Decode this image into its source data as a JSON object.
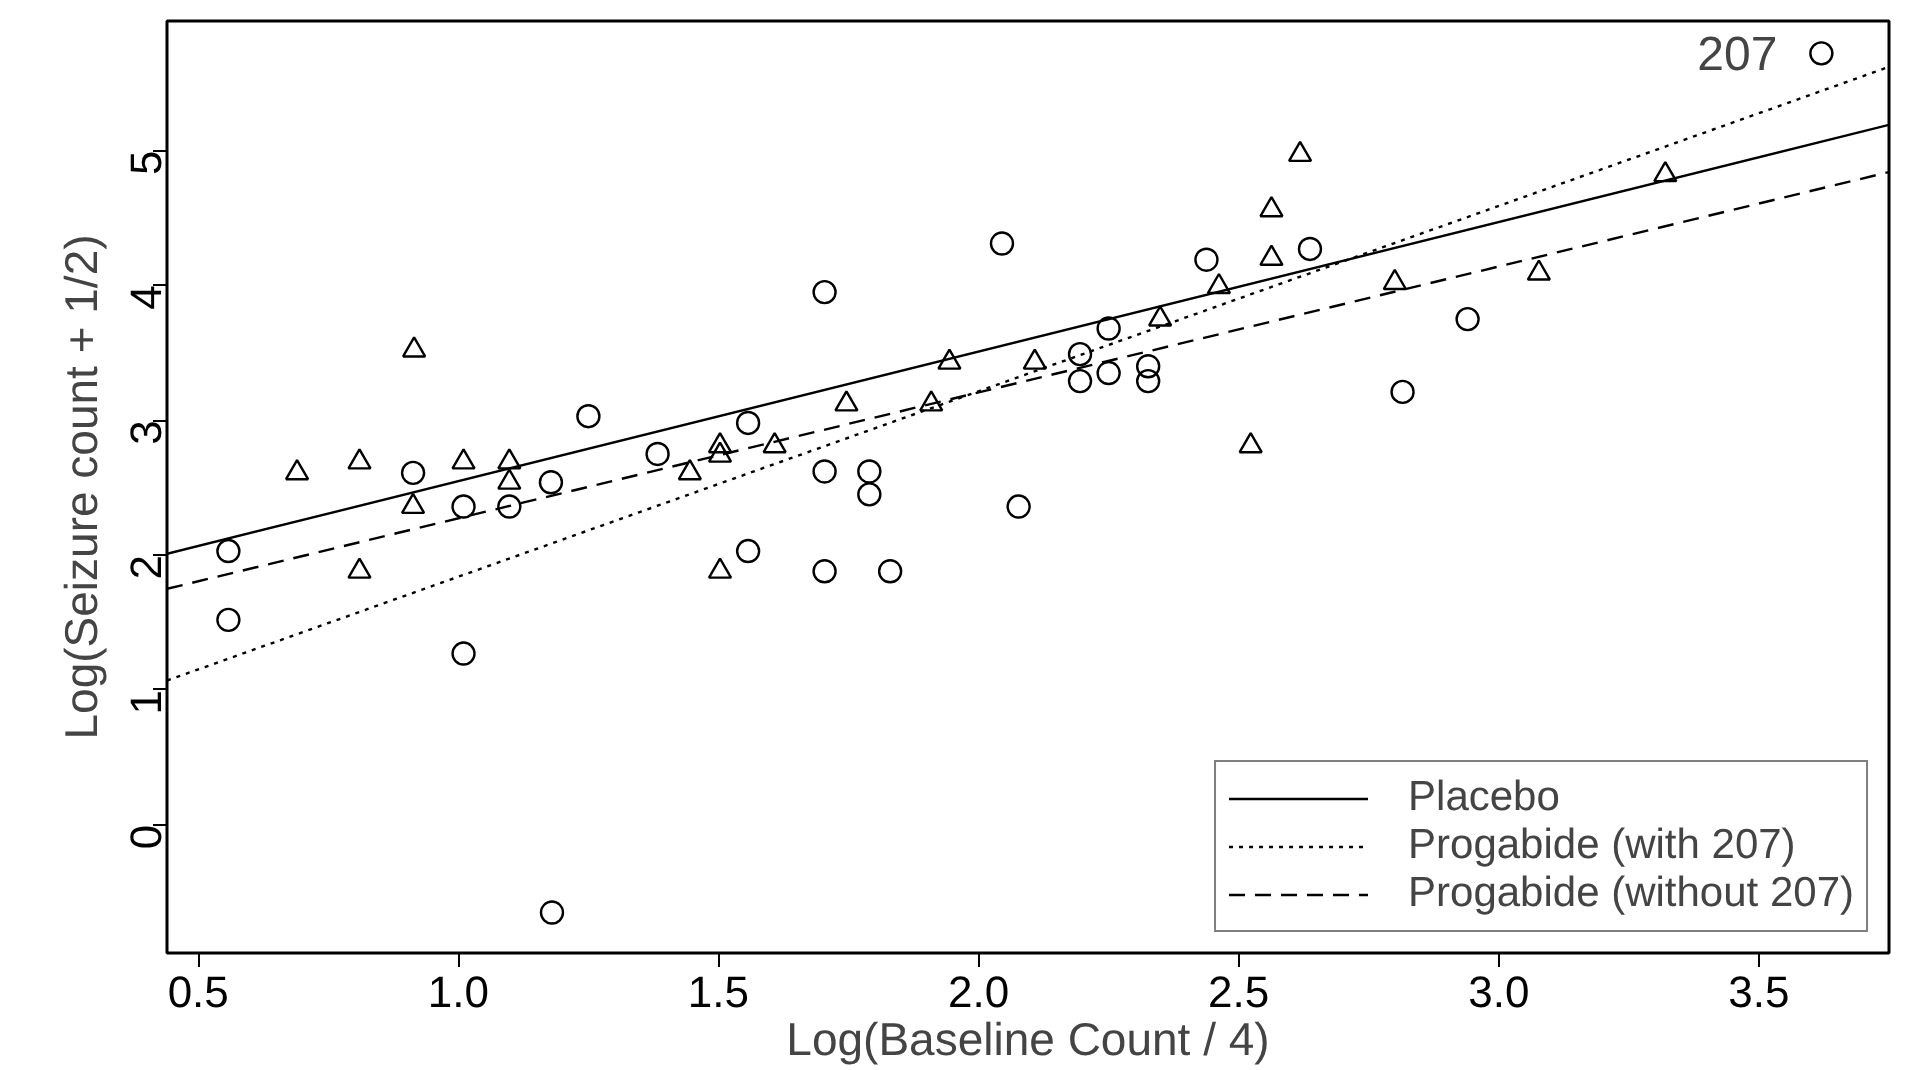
{
  "chart_data": {
    "type": "scatter",
    "xlabel": "Log(Baseline Count / 4)",
    "ylabel": "Log(Seizure count + 1/2)",
    "xlim": [
      0.44,
      3.75
    ],
    "ylim": [
      -0.95,
      5.96
    ],
    "xticks": [
      0.5,
      {
        "value": 1,
        "label": "1.0"
      },
      1.5,
      {
        "value": 2,
        "label": "2.0"
      },
      2.5,
      {
        "value": 3,
        "label": "3.0"
      },
      3.5
    ],
    "yticks": [
      0,
      1,
      2,
      3,
      4,
      5
    ],
    "grid": false,
    "legend": "bottom right",
    "series": [
      {
        "marker": "triangle",
        "color": "#000000",
        "x": [
          0.915,
          0.69,
          0.81,
          0.913,
          1.01,
          1.098,
          1.098,
          0.81,
          1.445,
          1.503,
          1.503,
          1.503,
          1.608,
          1.746,
          1.909,
          1.944,
          2.108,
          2.349,
          2.618,
          2.563,
          2.563,
          2.462,
          2.8,
          3.077,
          3.32,
          2.523
        ],
        "values": [
          3.52,
          2.61,
          2.69,
          2.36,
          2.69,
          2.69,
          2.54,
          1.88,
          2.61,
          2.81,
          2.74,
          1.88,
          2.81,
          3.12,
          3.12,
          3.43,
          3.43,
          3.75,
          4.97,
          4.56,
          4.2,
          3.99,
          4.02,
          4.09,
          4.82,
          2.81
        ]
      },
      {
        "marker": "circle",
        "color": "#000000",
        "x": [
          0.558,
          0.558,
          1.01,
          0.913,
          1.01,
          1.098,
          1.178,
          1.25,
          1.383,
          2.045,
          1.704,
          1.557,
          1.704,
          1.79,
          1.79,
          2.077,
          1.557,
          1.704,
          1.83,
          2.25,
          2.195,
          2.195,
          2.25,
          2.326,
          2.326,
          3.62,
          2.438,
          2.637,
          2.94,
          2.815,
          1.18
        ],
        "values": [
          2.03,
          1.52,
          1.27,
          2.61,
          2.36,
          2.36,
          2.54,
          3.03,
          2.75,
          4.31,
          3.95,
          2.98,
          2.62,
          2.62,
          2.45,
          2.36,
          2.03,
          1.88,
          1.88,
          3.68,
          3.49,
          3.29,
          3.35,
          3.4,
          3.29,
          5.72,
          4.19,
          4.27,
          3.75,
          3.21,
          -0.65
        ]
      },
      {
        "type": "line",
        "name": "Placebo",
        "line_style": "solid",
        "color": "#000000",
        "x": [
          0.44,
          3.75
        ],
        "values": [
          2.01,
          5.19
        ]
      },
      {
        "type": "line",
        "name": "Progabide (with 207)",
        "line_style": "dotted",
        "color": "#000000",
        "x": [
          0.44,
          3.75
        ],
        "values": [
          1.07,
          5.62
        ]
      },
      {
        "type": "line",
        "name": "Progabide (without 207)",
        "line_style": "dashed",
        "color": "#000000",
        "x": [
          0.44,
          3.75
        ],
        "values": [
          1.75,
          4.84
        ]
      }
    ],
    "annotations": [
      {
        "text": "207",
        "x": 3.62,
        "y": 5.72
      }
    ]
  }
}
